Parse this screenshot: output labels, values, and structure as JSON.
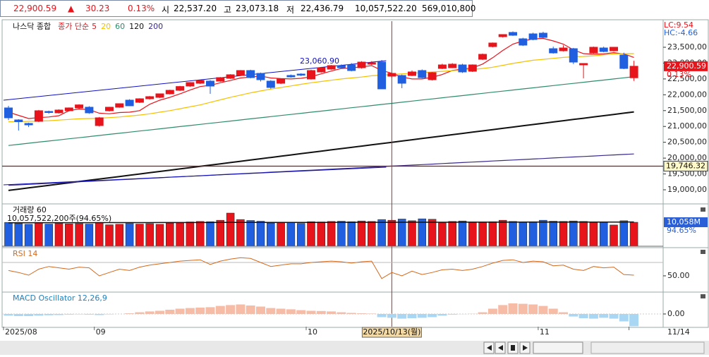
{
  "header": {
    "price": "22,900.59",
    "arrow": "▲",
    "change": "30.23",
    "change_pct": "0.13%",
    "open_label": "시",
    "open": "22,537.20",
    "high_label": "고",
    "high": "23,073.18",
    "low_label": "저",
    "low": "22,436.79",
    "volume": "10,057,522.20",
    "amount": "569,010,800"
  },
  "chart_data": [
    {
      "type": "candlestick",
      "title": "나스닥 종합",
      "legend_prefix": "종가 단순",
      "up_color": "#e8141c",
      "down_color": "#1f5fe0",
      "categories": [
        "2025/08",
        null,
        null,
        null,
        null,
        null,
        null,
        null,
        null,
        "09",
        null,
        null,
        null,
        null,
        null,
        null,
        null,
        null,
        null,
        null,
        null,
        null,
        null,
        null,
        null,
        null,
        null,
        null,
        null,
        null,
        "10",
        null,
        null,
        null,
        null,
        null,
        null,
        null,
        null,
        null,
        null,
        null,
        null,
        null,
        null,
        null,
        null,
        null,
        null,
        null,
        null,
        null,
        null,
        "11",
        null,
        null,
        null,
        null,
        null,
        null,
        null,
        null,
        "11/14"
      ],
      "crosshair": {
        "label": "2025/10/13(월)",
        "index": 38
      },
      "open": [
        21585,
        21206,
        21095,
        21162,
        21473,
        21430,
        21496,
        21585,
        21607,
        21028,
        21496,
        21607,
        21830,
        21763,
        21874,
        21919,
        22030,
        22141,
        22275,
        22364,
        22431,
        22431,
        22520,
        22609,
        22765,
        22676,
        22431,
        22364,
        22609,
        22654,
        22498,
        22721,
        22810,
        22921,
        22943,
        22854,
        22966,
        23032,
        22587,
        22609,
        22609,
        22765,
        22476,
        22832,
        22854,
        22943,
        22743,
        23121,
        23522,
        23834,
        23968,
        23767,
        23923,
        23945,
        23455,
        23389,
        23455,
        22943,
        23322,
        23478,
        23389,
        23255,
        22537.2
      ],
      "high": [
        21650,
        21230,
        21120,
        21520,
        21500,
        21540,
        21600,
        21700,
        21640,
        21300,
        21620,
        21730,
        21860,
        21890,
        21960,
        22040,
        22160,
        22280,
        22400,
        22470,
        22460,
        22560,
        22650,
        22780,
        22790,
        22700,
        22460,
        22520,
        22640,
        22680,
        22790,
        22880,
        22940,
        22960,
        23000,
        23060,
        23061,
        23099,
        22700,
        22640,
        22770,
        22800,
        22720,
        22980,
        23000,
        22980,
        22960,
        23300,
        23650,
        23900,
        24000,
        23800,
        23960,
        23990,
        23520,
        23560,
        23480,
        22990,
        23520,
        23520,
        23500,
        23330,
        23073.18
      ],
      "low": [
        21200,
        20870,
        20980,
        21140,
        21400,
        21410,
        21470,
        21560,
        21400,
        21000,
        21470,
        21590,
        21640,
        21740,
        21850,
        21900,
        22010,
        22120,
        22250,
        22340,
        22030,
        22410,
        22500,
        22590,
        22520,
        22420,
        22190,
        22340,
        22540,
        22590,
        22480,
        22700,
        22790,
        22820,
        22740,
        22830,
        22940,
        22190,
        22540,
        22208,
        22590,
        22520,
        22450,
        22810,
        22840,
        22690,
        22720,
        23100,
        23500,
        23810,
        23860,
        23540,
        23720,
        23790,
        23300,
        23370,
        22970,
        22520,
        23300,
        23340,
        23370,
        22810,
        22436.79
      ],
      "close": [
        21273,
        21150,
        21050,
        21496,
        21440,
        21518,
        21585,
        21680,
        21429,
        21273,
        21607,
        21718,
        21652,
        21874,
        21941,
        22030,
        22141,
        22260,
        22386,
        22453,
        22275,
        22542,
        22632,
        22765,
        22542,
        22476,
        22231,
        22498,
        22565,
        22620,
        22765,
        22854,
        22921,
        22854,
        22765,
        23032,
        23010,
        22186,
        22676,
        22364,
        22721,
        22542,
        22698,
        22943,
        22966,
        22721,
        22943,
        23277,
        23634,
        23901,
        23879,
        23567,
        23745,
        23812,
        23322,
        23478,
        23032,
        22988,
        23500,
        23366,
        23500,
        22832,
        22900.59
      ],
      "series": [
        {
          "name": "5",
          "color": "#e8141c",
          "values": [
            21450,
            21350,
            21250,
            21280,
            21300,
            21340,
            21500,
            21550,
            21530,
            21420,
            21400,
            21440,
            21450,
            21500,
            21700,
            21830,
            21920,
            22030,
            22150,
            22260,
            22300,
            22380,
            22450,
            22530,
            22560,
            22590,
            22530,
            22510,
            22500,
            22520,
            22570,
            22660,
            22750,
            22830,
            22850,
            22880,
            22920,
            22770,
            22680,
            22560,
            22500,
            22500,
            22550,
            22640,
            22770,
            22810,
            22850,
            22970,
            23170,
            23400,
            23600,
            23700,
            23760,
            23780,
            23700,
            23600,
            23420,
            23300,
            23280,
            23290,
            23330,
            23290,
            23180
          ]
        },
        {
          "name": "20",
          "color": "#f5c000",
          "values": [
            21150,
            21150,
            21160,
            21170,
            21180,
            21200,
            21220,
            21240,
            21250,
            21260,
            21280,
            21300,
            21330,
            21360,
            21400,
            21450,
            21500,
            21560,
            21620,
            21680,
            21760,
            21840,
            21920,
            21990,
            22060,
            22120,
            22180,
            22230,
            22280,
            22330,
            22380,
            22420,
            22460,
            22500,
            22530,
            22560,
            22600,
            22620,
            22640,
            22660,
            22680,
            22700,
            22720,
            22740,
            22760,
            22780,
            22800,
            22830,
            22870,
            22930,
            22990,
            23040,
            23090,
            23120,
            23150,
            23180,
            23200,
            23210,
            23230,
            23260,
            23290,
            23300,
            23300
          ]
        },
        {
          "name": "60",
          "color": "#2e8b6e",
          "values": [
            20400,
            20435,
            20470,
            20505,
            20540,
            20575,
            20610,
            20645,
            20680,
            20715,
            20750,
            20785,
            20820,
            20855,
            20890,
            20925,
            20960,
            20995,
            21030,
            21065,
            21100,
            21135,
            21170,
            21205,
            21240,
            21275,
            21310,
            21345,
            21380,
            21415,
            21450,
            21485,
            21520,
            21555,
            21590,
            21625,
            21660,
            21695,
            21730,
            21765,
            21800,
            21835,
            21870,
            21905,
            21940,
            21975,
            22010,
            22045,
            22080,
            22115,
            22150,
            22185,
            22220,
            22255,
            22290,
            22325,
            22360,
            22395,
            22430,
            22465,
            22500,
            22535,
            22570
          ]
        },
        {
          "name": "120",
          "color": "#111111",
          "values": [
            18980,
            19020,
            19060,
            19100,
            19140,
            19180,
            19220,
            19260,
            19300,
            19340,
            19380,
            19420,
            19460,
            19500,
            19540,
            19580,
            19620,
            19660,
            19700,
            19740,
            19780,
            19820,
            19860,
            19900,
            19940,
            19980,
            20020,
            20060,
            20100,
            20140,
            20180,
            20220,
            20260,
            20300,
            20340,
            20380,
            20420,
            20460,
            20500,
            20540,
            20580,
            20620,
            20660,
            20700,
            20740,
            20780,
            20820,
            20860,
            20900,
            20940,
            20980,
            21020,
            21060,
            21100,
            21140,
            21180,
            21220,
            21260,
            21300,
            21340,
            21380,
            21420,
            21460
          ]
        },
        {
          "name": "200",
          "color": "#3a2a8a",
          "values": [
            19140,
            19156,
            19172,
            19188,
            19204,
            19220,
            19236,
            19252,
            19268,
            19284,
            19300,
            19316,
            19332,
            19348,
            19364,
            19380,
            19396,
            19412,
            19428,
            19444,
            19460,
            19476,
            19492,
            19508,
            19524,
            19540,
            19556,
            19572,
            19588,
            19604,
            19620,
            19636,
            19652,
            19668,
            19684,
            19700,
            19716,
            19732,
            19748,
            19764,
            19780,
            19796,
            19812,
            19828,
            19844,
            19860,
            19876,
            19892,
            19908,
            19924,
            19940,
            19956,
            19972,
            19988,
            20004,
            20020,
            20036,
            20052,
            20068,
            20084,
            20100,
            20116,
            20132
          ]
        }
      ],
      "channel": {
        "color": "#1010c0",
        "upper": [
          21830,
          23077
        ],
        "lower": [
          19157,
          19714
        ]
      },
      "channel_label": "23,060.90",
      "hline": {
        "value": 19746.32,
        "label": "19,746.32",
        "color": "#8b1a1a"
      },
      "last": {
        "value": 22900.59,
        "label": "22,900.59",
        "change": "0.13%"
      },
      "lc": "LC:9.54",
      "hc": "HC:-4.66",
      "ylim": [
        18577,
        24324
      ],
      "yticks": [
        {
          "value": 19000,
          "label": "19,000,00"
        },
        {
          "value": 19500,
          "label": "19,500,00"
        },
        {
          "value": 20000,
          "label": "20,000,00"
        },
        {
          "value": 20500,
          "label": "20,500,00"
        },
        {
          "value": 21000,
          "label": "21,000,00"
        },
        {
          "value": 21500,
          "label": "21,500,00"
        },
        {
          "value": 22000,
          "label": "22,000,00"
        },
        {
          "value": 22500,
          "label": "22,500,00"
        },
        {
          "value": 23000,
          "label": "23,000,00"
        },
        {
          "value": 23500,
          "label": "23,500,00"
        }
      ]
    },
    {
      "type": "bar",
      "title": "거래량 60",
      "subtitle": "10,057,522,200주(94.65%)",
      "values": [
        10000,
        9500,
        9200,
        9800,
        9300,
        9600,
        9400,
        9500,
        9300,
        9800,
        9000,
        9200,
        9600,
        9300,
        9500,
        9200,
        9700,
        9800,
        10200,
        10400,
        10300,
        10900,
        13900,
        11200,
        10800,
        10500,
        9700,
        9800,
        9900,
        9600,
        10300,
        10200,
        10400,
        10500,
        10300,
        10600,
        10400,
        11200,
        10900,
        11400,
        10700,
        11500,
        11300,
        9800,
        10400,
        10600,
        10200,
        10200,
        10300,
        10900,
        10400,
        10000,
        10300,
        10900,
        10500,
        10400,
        10600,
        10400,
        10100,
        10200,
        8900,
        10700,
        10058
      ],
      "ma_values": [
        9850,
        9855,
        9860,
        9865,
        9870,
        9875,
        9880,
        9885,
        9890,
        9895,
        9900,
        9905,
        9910,
        9915,
        9920,
        9925,
        9930,
        9935,
        9940,
        9945,
        9950,
        9955,
        9960,
        9965,
        9970,
        9975,
        9980,
        9985,
        9990,
        9995,
        10000,
        10005,
        10010,
        10015,
        10020,
        10025,
        10030,
        10035,
        10040,
        10045,
        10050,
        10055,
        10060,
        10065,
        10070,
        10075,
        10080,
        10085,
        10090,
        10095,
        10100,
        10105,
        10110,
        10115,
        10120,
        10125,
        10130,
        10135,
        10140,
        10145,
        10150,
        10155,
        10160
      ],
      "ma_color": "#111111",
      "last": {
        "value": 10058,
        "label": "10,058M",
        "pct": "94.65%"
      },
      "ylim": [
        0,
        17450
      ],
      "yticks": []
    },
    {
      "type": "line",
      "title": "RSI 14",
      "color": "#d2691e",
      "values": [
        58,
        55,
        51,
        60,
        64,
        62,
        60,
        63,
        62,
        50,
        55,
        60,
        58,
        63,
        66,
        68,
        70,
        72,
        73,
        74,
        67,
        72,
        75,
        77,
        76,
        70,
        64,
        66,
        68,
        68,
        70,
        71,
        72,
        71,
        69,
        71,
        72,
        46,
        55,
        50,
        57,
        52,
        55,
        59,
        60,
        58,
        60,
        64,
        69,
        73,
        74,
        70,
        72,
        71,
        65,
        66,
        60,
        58,
        64,
        62,
        63,
        52,
        51
      ],
      "ylim": [
        26.8,
        91
      ],
      "yticks": [
        {
          "value": 50,
          "label": "50.00"
        }
      ]
    },
    {
      "type": "bar",
      "title": "MACD Oscillator 12,26,9",
      "positive_color": "#f6bca6",
      "negative_color": "#a9d6f2",
      "values": [
        -8,
        -10,
        -10,
        -8,
        -6,
        -5,
        -3,
        -2,
        -3,
        -5,
        -2,
        0,
        3,
        8,
        12,
        15,
        20,
        25,
        28,
        30,
        32,
        38,
        42,
        45,
        40,
        35,
        28,
        25,
        22,
        18,
        15,
        14,
        12,
        8,
        5,
        3,
        2,
        -15,
        -18,
        -22,
        -20,
        -18,
        -15,
        -8,
        -3,
        -1,
        1,
        8,
        25,
        42,
        50,
        48,
        45,
        38,
        25,
        8,
        -12,
        -20,
        -22,
        -18,
        -22,
        -35,
        -58
      ],
      "ylim": [
        -60,
        100
      ],
      "yticks": [
        {
          "value": 0,
          "label": "0.00"
        }
      ]
    }
  ]
}
